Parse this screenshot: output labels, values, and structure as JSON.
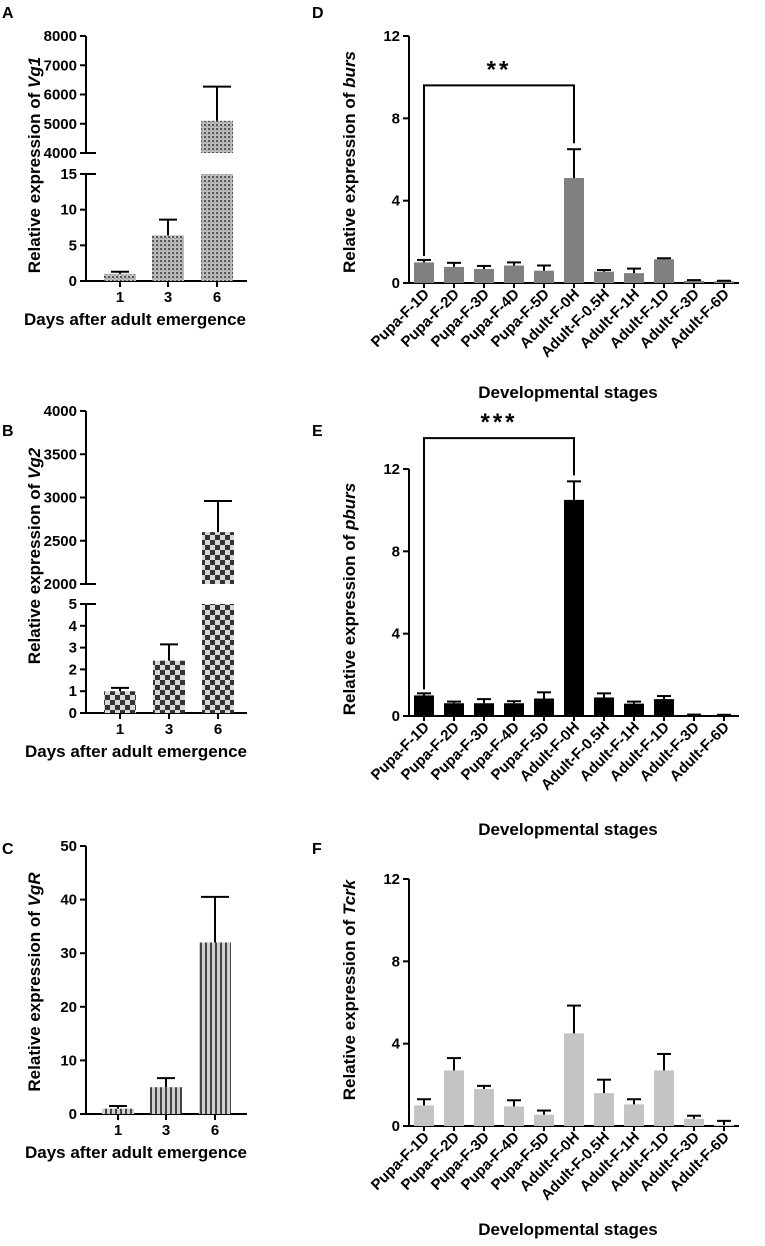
{
  "chart_data": [
    {
      "panel": "A",
      "type": "bar",
      "axis_break": true,
      "categories": [
        "1",
        "3",
        "6"
      ],
      "values": [
        1.0,
        6.4,
        5100
      ],
      "errors": [
        0.3,
        2.2,
        1170
      ],
      "lower_range": [
        0,
        15
      ],
      "lower_ticks": [
        "0",
        "5",
        "10",
        "15"
      ],
      "upper_range": [
        4000,
        8000
      ],
      "upper_ticks": [
        "4000",
        "5000",
        "6000",
        "7000",
        "8000"
      ],
      "ylabel_prefix": "Relative expression of ",
      "ylabel_gene": "Vg1",
      "xlabel": "Days after adult emergence",
      "fill": "dots"
    },
    {
      "panel": "B",
      "type": "bar",
      "axis_break": true,
      "categories": [
        "1",
        "3",
        "6"
      ],
      "values": [
        1.0,
        2.4,
        2600
      ],
      "errors": [
        0.15,
        0.75,
        360
      ],
      "lower_range": [
        0,
        5
      ],
      "lower_ticks": [
        "0",
        "1",
        "2",
        "3",
        "4",
        "5"
      ],
      "upper_range": [
        2000,
        4000
      ],
      "upper_ticks": [
        "2000",
        "2500",
        "3000",
        "3500",
        "4000"
      ],
      "ylabel_prefix": "Relative expression of ",
      "ylabel_gene": "Vg2",
      "xlabel": "Days after adult emergence",
      "fill": "checker"
    },
    {
      "panel": "C",
      "type": "bar",
      "categories": [
        "1",
        "3",
        "6"
      ],
      "values": [
        1.0,
        5.0,
        32
      ],
      "errors": [
        0.5,
        1.7,
        8.5
      ],
      "ylim": [
        0,
        50
      ],
      "yticks": [
        "0",
        "10",
        "20",
        "30",
        "40",
        "50"
      ],
      "ylabel_prefix": "Relative expression of ",
      "ylabel_gene": "VgR",
      "xlabel": "Days after adult emergence",
      "fill": "vlines"
    },
    {
      "panel": "D",
      "type": "bar",
      "categories": [
        "Pupa-F-1D",
        "Pupa-F-2D",
        "Pupa-F-3D",
        "Pupa-F-4D",
        "Pupa-F-5D",
        "Adult-F-0H",
        "Adult-F-0.5H",
        "Adult-F-1H",
        "Adult-F-1D",
        "Adult-F-3D",
        "Adult-F-6D"
      ],
      "values": [
        1.0,
        0.78,
        0.68,
        0.85,
        0.6,
        5.1,
        0.55,
        0.48,
        1.15,
        0.1,
        0.08
      ],
      "errors": [
        0.12,
        0.2,
        0.15,
        0.15,
        0.25,
        1.4,
        0.08,
        0.22,
        0.05,
        0.04,
        0.03
      ],
      "ylim": [
        0,
        12
      ],
      "yticks": [
        "0",
        "4",
        "8",
        "12"
      ],
      "ylabel_prefix": "Relative expression of ",
      "ylabel_gene": "burs",
      "xlabel": "Developmental stages",
      "significance": {
        "from": 0,
        "to": 5,
        "y": 9.6,
        "label": "**"
      },
      "color": "#808080"
    },
    {
      "panel": "E",
      "type": "bar",
      "categories": [
        "Pupa-F-1D",
        "Pupa-F-2D",
        "Pupa-F-3D",
        "Pupa-F-4D",
        "Pupa-F-5D",
        "Adult-F-0H",
        "Adult-F-0.5H",
        "Adult-F-1H",
        "Adult-F-1D",
        "Adult-F-3D",
        "Adult-F-6D"
      ],
      "values": [
        1.0,
        0.62,
        0.62,
        0.62,
        0.85,
        10.5,
        0.9,
        0.6,
        0.82,
        0.05,
        0.04
      ],
      "errors": [
        0.1,
        0.08,
        0.2,
        0.1,
        0.3,
        0.9,
        0.2,
        0.1,
        0.15,
        0.02,
        0.02
      ],
      "ylim": [
        0,
        12
      ],
      "yticks": [
        "0",
        "4",
        "8",
        "12"
      ],
      "ylabel_prefix": "Relative expression of ",
      "ylabel_gene": "pburs",
      "xlabel": "Developmental stages",
      "significance": {
        "from": 0,
        "to": 5,
        "y": 13.5,
        "label": "***"
      },
      "color": "#000000"
    },
    {
      "panel": "F",
      "type": "bar",
      "categories": [
        "Pupa-F-1D",
        "Pupa-F-2D",
        "Pupa-F-3D",
        "Pupa-F-4D",
        "Pupa-F-5D",
        "Adult-F-0H",
        "Adult-F-0.5H",
        "Adult-F-1H",
        "Adult-F-1D",
        "Adult-F-3D",
        "Adult-F-6D"
      ],
      "values": [
        1.0,
        2.7,
        1.8,
        0.95,
        0.55,
        4.5,
        1.6,
        1.05,
        2.7,
        0.35,
        0.05
      ],
      "errors": [
        0.3,
        0.6,
        0.15,
        0.3,
        0.2,
        1.35,
        0.65,
        0.25,
        0.8,
        0.15,
        0.2
      ],
      "ylim": [
        0,
        12
      ],
      "yticks": [
        "0",
        "4",
        "8",
        "12"
      ],
      "ylabel_prefix": "Relative expression of ",
      "ylabel_gene": "Tcrk",
      "xlabel": "Developmental stages",
      "color": "#c4c4c4"
    }
  ]
}
